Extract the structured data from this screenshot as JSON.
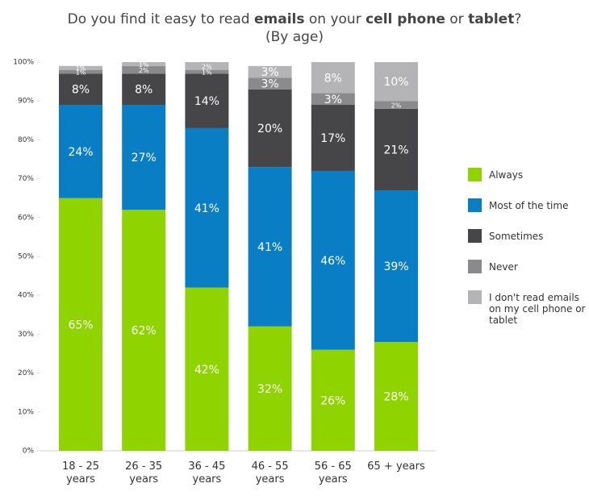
{
  "chart_data": {
    "type": "stacked_bar",
    "title": [
      {
        "text": "Do you find it easy to read ",
        "bold": false
      },
      {
        "text": "emails",
        "bold": true
      },
      {
        "text": " on your ",
        "bold": false
      },
      {
        "text": "cell phone",
        "bold": true
      },
      {
        "text": " or ",
        "bold": false
      },
      {
        "text": "tablet",
        "bold": true
      },
      {
        "text": "?",
        "bold": false
      }
    ],
    "subtitle": "(By age)",
    "categories": [
      "18 - 25 years",
      "26 - 35 years",
      "36 - 45 years",
      "46 - 55 years",
      "56 - 65 years",
      "65 + years"
    ],
    "series": [
      {
        "name": "Always",
        "color": "#8fd400",
        "values": [
          65,
          62,
          42,
          32,
          26,
          28
        ],
        "value_labels": [
          "65%",
          "62%",
          "42%",
          "32%",
          "26%",
          "28%"
        ]
      },
      {
        "name": "Most of the time",
        "color": "#0a7ec4",
        "values": [
          24,
          27,
          41,
          41,
          46,
          39
        ],
        "value_labels": [
          "24%",
          "27%",
          "41%",
          "41%",
          "46%",
          "39%"
        ]
      },
      {
        "name": "Sometimes",
        "color": "#464648",
        "values": [
          8,
          8,
          14,
          20,
          17,
          21
        ],
        "value_labels": [
          "8%",
          "8%",
          "14%",
          "20%",
          "17%",
          "21%"
        ]
      },
      {
        "name": "Never",
        "color": "#8a8a8c",
        "values": [
          1,
          2,
          1,
          3,
          3,
          2
        ],
        "value_labels": [
          "1%",
          "2%",
          "1%",
          "3%",
          "3%",
          "2%"
        ]
      },
      {
        "name": "I don't read emails on my cell phone or tablet",
        "color": "#b4b4b6",
        "values": [
          1,
          1,
          2,
          3,
          8,
          10
        ],
        "value_labels": [
          "1%",
          "1%",
          "2%",
          "3%",
          "8%",
          "10%"
        ]
      }
    ],
    "ylim": [
      0,
      100
    ],
    "yticks": [
      {
        "value": 0,
        "label": "0%"
      },
      {
        "value": 10,
        "label": "10%"
      },
      {
        "value": 20,
        "label": "20%"
      },
      {
        "value": 30,
        "label": "30%"
      },
      {
        "value": 40,
        "label": "40%"
      },
      {
        "value": 50,
        "label": "50%"
      },
      {
        "value": 60,
        "label": "60%"
      },
      {
        "value": 70,
        "label": "70%"
      },
      {
        "value": 80,
        "label": "80%"
      },
      {
        "value": 90,
        "label": "90%"
      },
      {
        "value": 100,
        "label": "100%"
      }
    ],
    "legend": "right"
  }
}
